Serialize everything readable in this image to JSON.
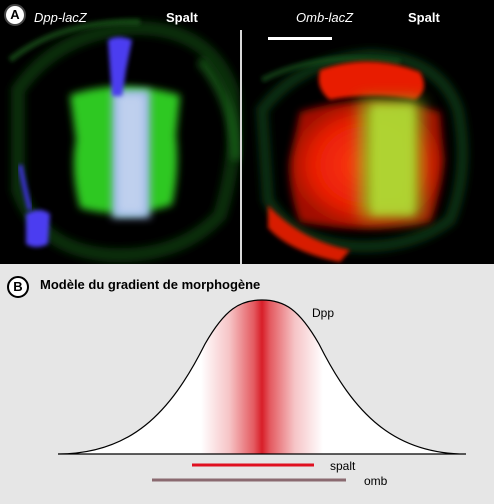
{
  "panel_a": {
    "letter": "A",
    "left_image": {
      "label_gene": "Dpp-lacZ",
      "label_protein": "Spalt"
    },
    "right_image": {
      "label_gene": "Omb-lacZ",
      "label_protein": "Spalt"
    },
    "colors": {
      "blue": "#4b3df0",
      "green": "#33cc22",
      "red": "#ff2a0a"
    }
  },
  "panel_b": {
    "letter": "B",
    "title": "Modèle du gradient de morphogène",
    "curve_label": "Dpp",
    "bars": [
      {
        "label": "spalt",
        "color": "#e01020"
      },
      {
        "label": "omb",
        "color": "#8a6a70"
      }
    ],
    "gradient_color": "#d81e28"
  }
}
